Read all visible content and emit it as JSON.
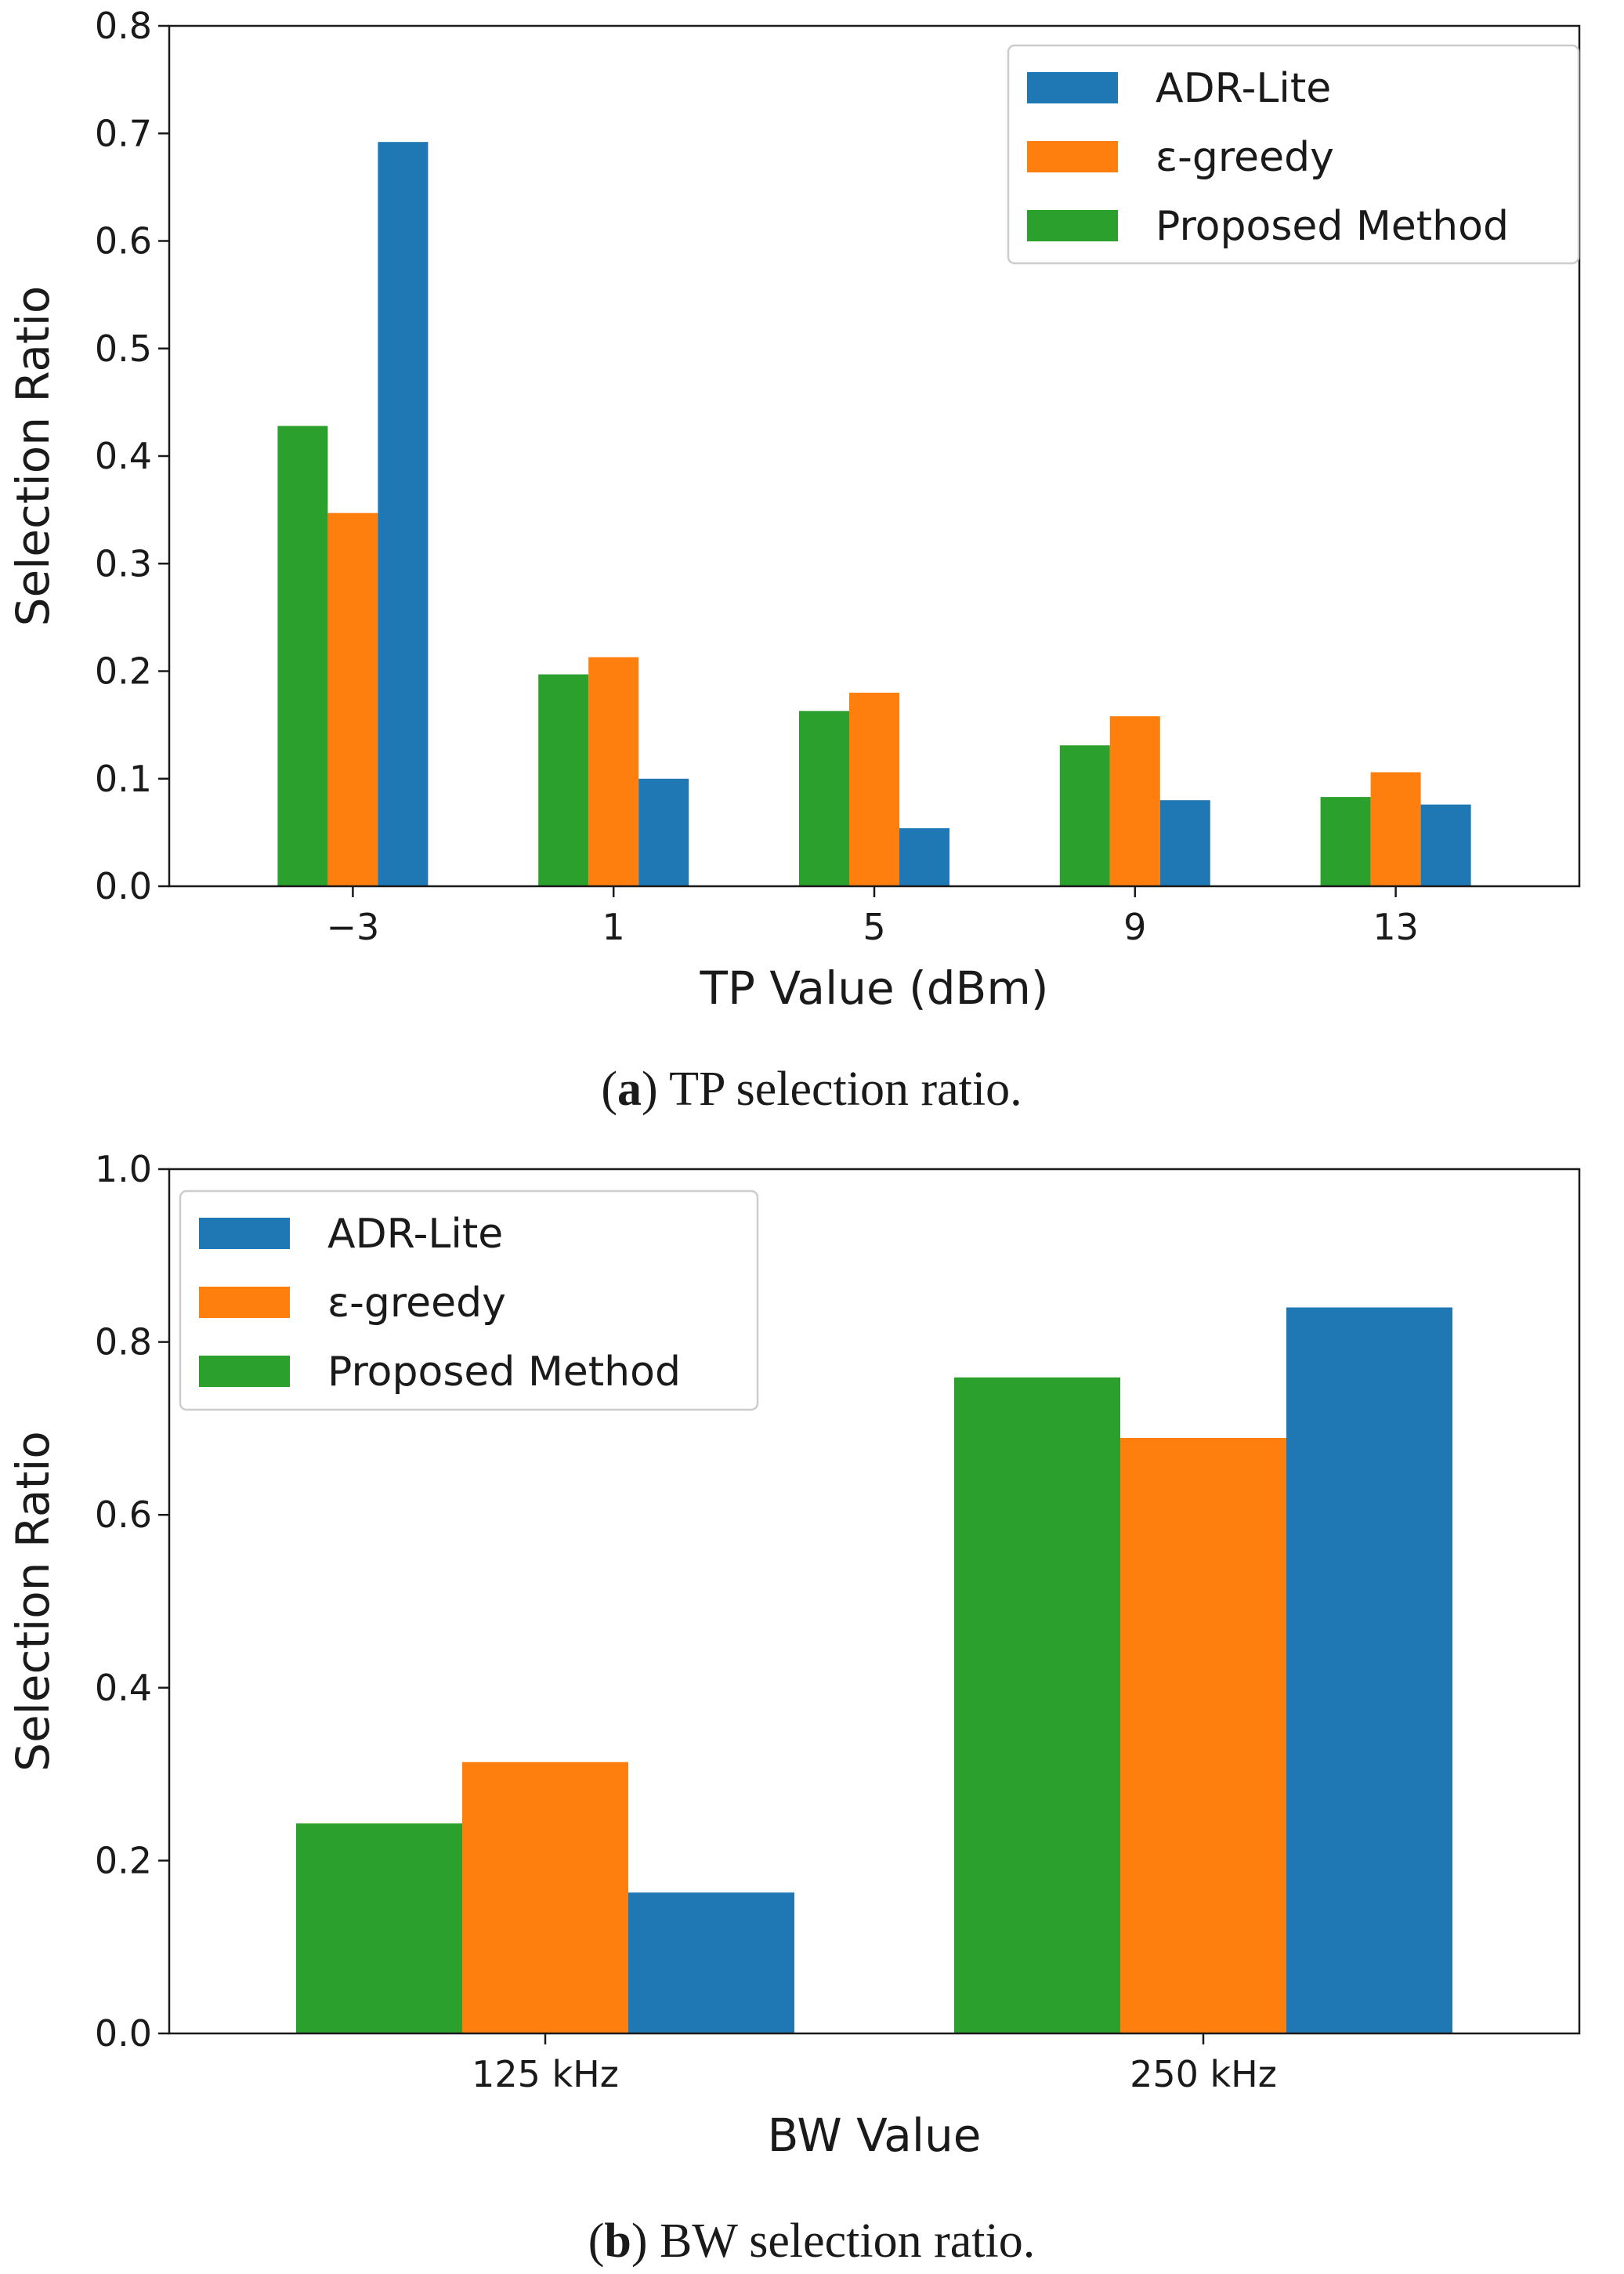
{
  "chart_data": [
    {
      "id": "tp",
      "type": "bar",
      "title": "",
      "xlabel": "TP Value (dBm)",
      "ylabel": "Selection Ratio",
      "categories": [
        "−3",
        "1",
        "5",
        "9",
        "13"
      ],
      "ylim": [
        0,
        0.8
      ],
      "yticks": [
        "0.0",
        "0.1",
        "0.2",
        "0.3",
        "0.4",
        "0.5",
        "0.6",
        "0.7",
        "0.8"
      ],
      "grid": false,
      "legend_position": "top-right",
      "series": [
        {
          "name": "Proposed Method",
          "color": "#2ca02c",
          "values": [
            0.428,
            0.197,
            0.163,
            0.131,
            0.083
          ]
        },
        {
          "name": "ε-greedy",
          "color": "#ff7f0e",
          "values": [
            0.347,
            0.213,
            0.18,
            0.158,
            0.106
          ]
        },
        {
          "name": "ADR-Lite",
          "color": "#1f77b4",
          "values": [
            0.692,
            0.1,
            0.054,
            0.08,
            0.076
          ]
        }
      ],
      "legend_order": [
        "ADR-Lite",
        "ε-greedy",
        "Proposed Method"
      ],
      "caption_letter": "a",
      "caption_text": " TP selection ratio."
    },
    {
      "id": "bw",
      "type": "bar",
      "title": "",
      "xlabel": "BW Value",
      "ylabel": "Selection Ratio",
      "categories": [
        "125 kHz",
        "250 kHz"
      ],
      "ylim": [
        0,
        1.0
      ],
      "yticks": [
        "0.0",
        "0.2",
        "0.4",
        "0.6",
        "0.8",
        "1.0"
      ],
      "grid": false,
      "legend_position": "top-left",
      "series": [
        {
          "name": "Proposed Method",
          "color": "#2ca02c",
          "values": [
            0.243,
            0.759
          ]
        },
        {
          "name": "ε-greedy",
          "color": "#ff7f0e",
          "values": [
            0.314,
            0.689
          ]
        },
        {
          "name": "ADR-Lite",
          "color": "#1f77b4",
          "values": [
            0.163,
            0.84
          ]
        }
      ],
      "legend_order": [
        "ADR-Lite",
        "ε-greedy",
        "Proposed Method"
      ],
      "caption_letter": "b",
      "caption_text": " BW selection ratio."
    }
  ]
}
